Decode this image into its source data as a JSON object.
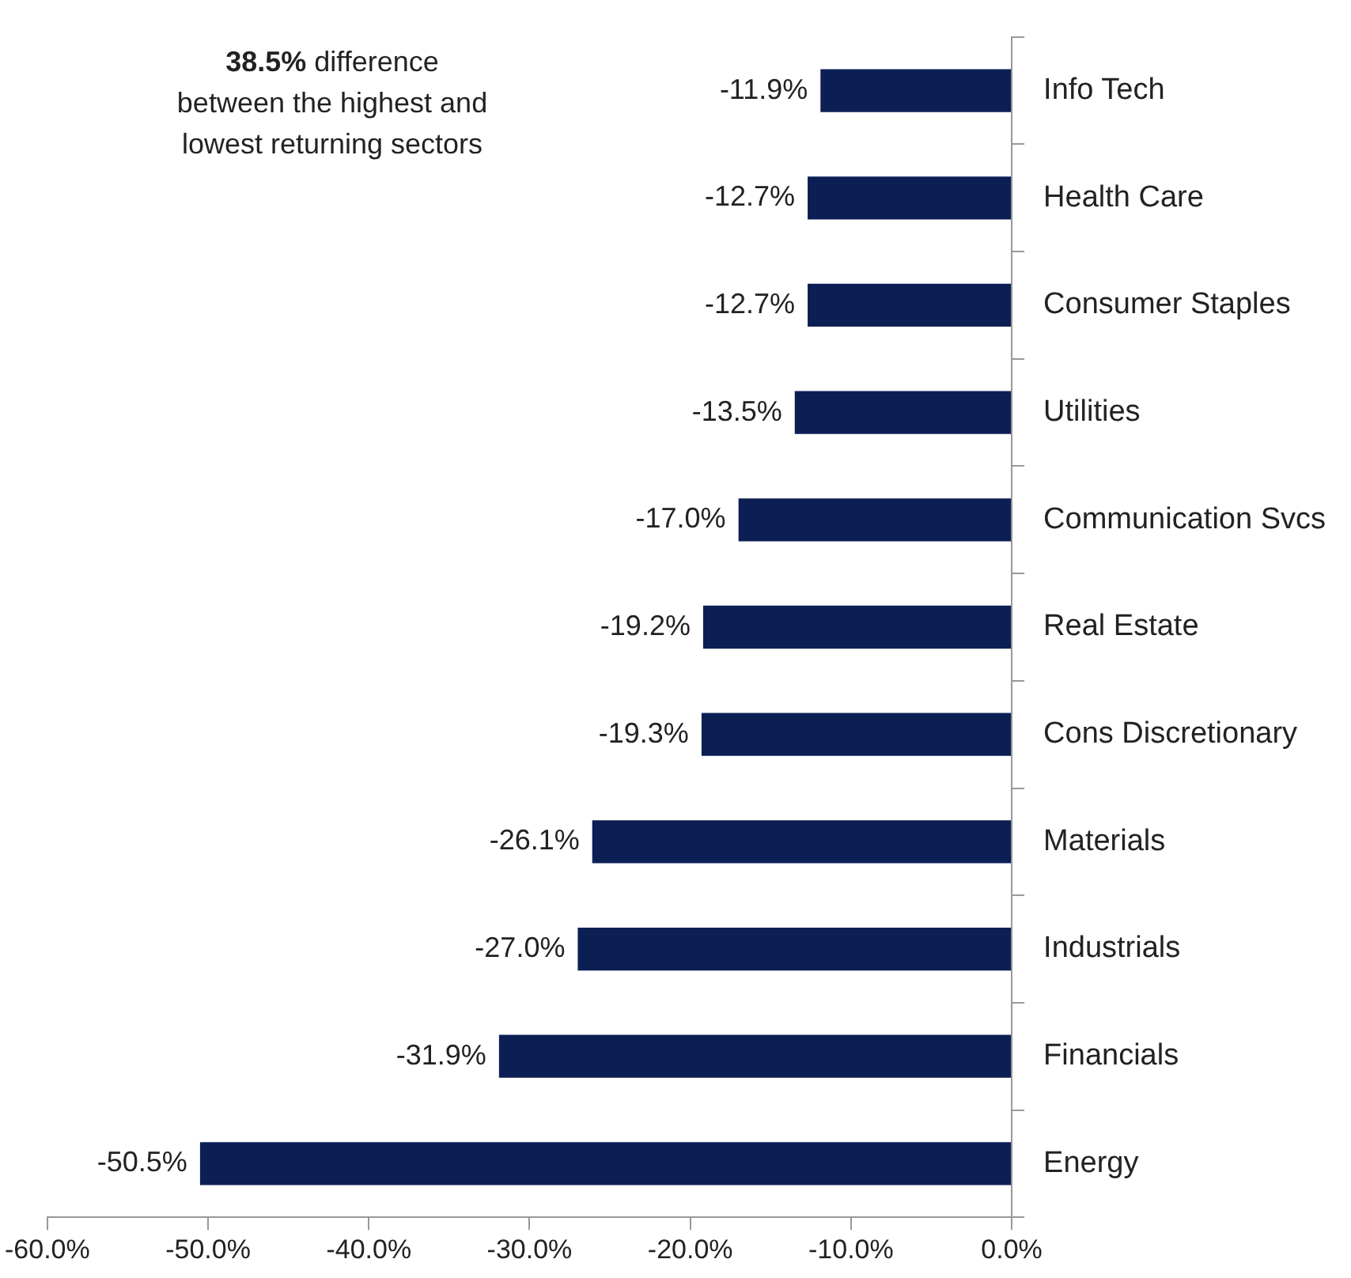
{
  "chart_data": {
    "type": "bar",
    "orientation": "horizontal",
    "categories": [
      "Info Tech",
      "Health Care",
      "Consumer Staples",
      "Utilities",
      "Communication Svcs",
      "Real Estate",
      "Cons Discretionary",
      "Materials",
      "Industrials",
      "Financials",
      "Energy"
    ],
    "values": [
      -11.9,
      -12.7,
      -12.7,
      -13.5,
      -17.0,
      -19.2,
      -19.3,
      -26.1,
      -27.0,
      -31.9,
      -50.5
    ],
    "value_labels": [
      "-11.9%",
      "-12.7%",
      "-12.7%",
      "-13.5%",
      "-17.0%",
      "-19.2%",
      "-19.3%",
      "-26.1%",
      "-27.0%",
      "-31.9%",
      "-50.5%"
    ],
    "color": "#0c1f55",
    "xlim": [
      -60,
      0
    ],
    "xticks": [
      {
        "value": -60,
        "label": "-60.0%"
      },
      {
        "value": -50,
        "label": "-50.0%"
      },
      {
        "value": -40,
        "label": "-40.0%"
      },
      {
        "value": -30,
        "label": "-30.0%"
      },
      {
        "value": -20,
        "label": "-20.0%"
      },
      {
        "value": -10,
        "label": "-10.0%"
      },
      {
        "value": 0,
        "label": "0.0%"
      }
    ],
    "grid": false,
    "legend": false,
    "annotations": [
      "38.5% difference between the highest and lowest returning sectors"
    ]
  }
}
